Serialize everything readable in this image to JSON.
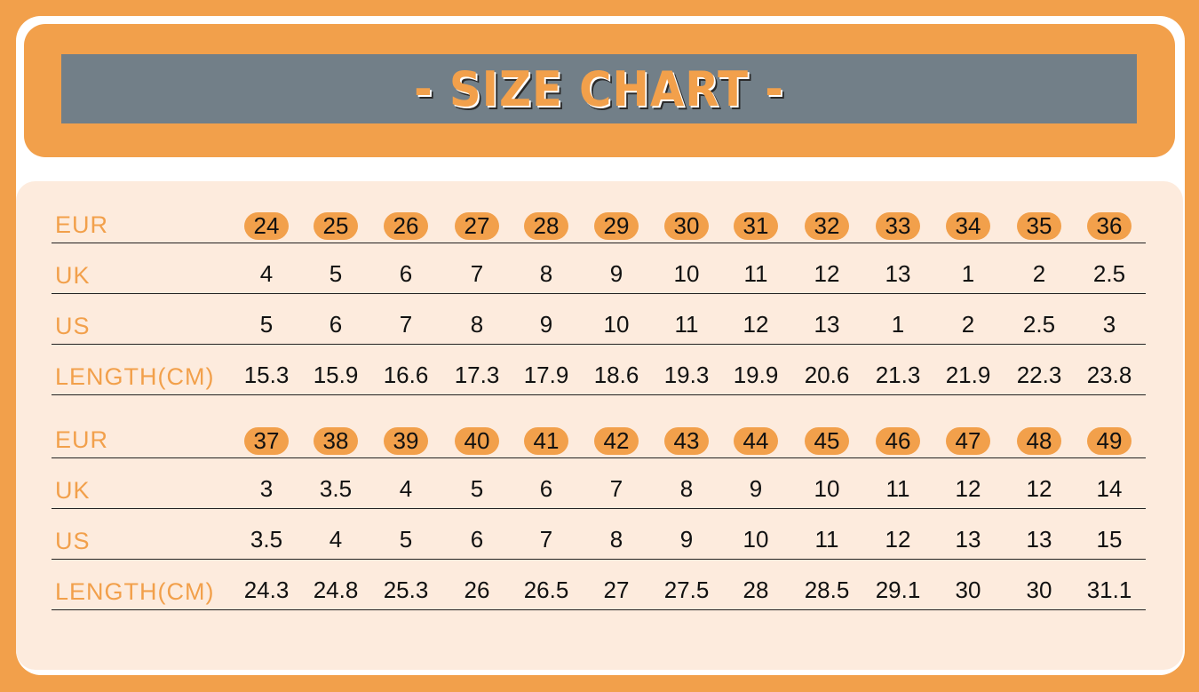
{
  "title": "- SIZE CHART -",
  "colors": {
    "background": "#f2a04b",
    "title_bar": "#727f88",
    "panel": "#fdebdd",
    "label": "#f2a04b",
    "pill": "#f2a04b"
  },
  "tables": [
    {
      "rows": [
        {
          "label": "EUR",
          "values": [
            "24",
            "25",
            "26",
            "27",
            "28",
            "29",
            "30",
            "31",
            "32",
            "33",
            "34",
            "35",
            "36"
          ]
        },
        {
          "label": "UK",
          "values": [
            "4",
            "5",
            "6",
            "7",
            "8",
            "9",
            "10",
            "11",
            "12",
            "13",
            "1",
            "2",
            "2.5"
          ]
        },
        {
          "label": "US",
          "values": [
            "5",
            "6",
            "7",
            "8",
            "9",
            "10",
            "11",
            "12",
            "13",
            "1",
            "2",
            "2.5",
            "3"
          ]
        },
        {
          "label": "LENGTH(CM)",
          "values": [
            "15.3",
            "15.9",
            "16.6",
            "17.3",
            "17.9",
            "18.6",
            "19.3",
            "19.9",
            "20.6",
            "21.3",
            "21.9",
            "22.3",
            "23.8"
          ]
        }
      ]
    },
    {
      "rows": [
        {
          "label": "EUR",
          "values": [
            "37",
            "38",
            "39",
            "40",
            "41",
            "42",
            "43",
            "44",
            "45",
            "46",
            "47",
            "48",
            "49"
          ]
        },
        {
          "label": "UK",
          "values": [
            "3",
            "3.5",
            "4",
            "5",
            "6",
            "7",
            "8",
            "9",
            "10",
            "11",
            "12",
            "12",
            "14"
          ]
        },
        {
          "label": "US",
          "values": [
            "3.5",
            "4",
            "5",
            "6",
            "7",
            "8",
            "9",
            "10",
            "11",
            "12",
            "13",
            "13",
            "15"
          ]
        },
        {
          "label": "LENGTH(CM)",
          "values": [
            "24.3",
            "24.8",
            "25.3",
            "26",
            "26.5",
            "27",
            "27.5",
            "28",
            "28.5",
            "29.1",
            "30",
            "30",
            "31.1"
          ]
        }
      ]
    }
  ]
}
